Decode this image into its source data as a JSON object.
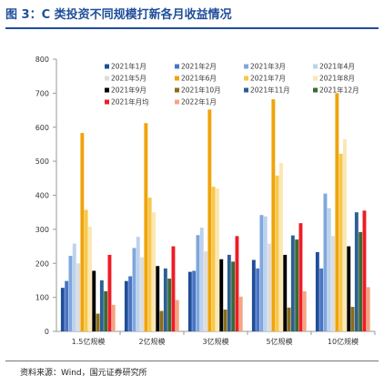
{
  "figure_title": "图 3：C 类投资不同规模打新各月收益情况",
  "source_note": "资料来源：Wind，国元证券研究所",
  "chart_data": {
    "type": "bar",
    "categories": [
      "1.5亿规模",
      "2亿规模",
      "3亿规模",
      "5亿规模",
      "10亿规模"
    ],
    "ylim": [
      0,
      800
    ],
    "yticks": [
      0,
      100,
      200,
      300,
      400,
      500,
      600,
      700,
      800
    ],
    "grid": false,
    "legend_position": "top",
    "series": [
      {
        "name": "2021年1月",
        "color": "#1f4e9a",
        "values": [
          128,
          148,
          175,
          210,
          233
        ]
      },
      {
        "name": "2021年2月",
        "color": "#4a74c4",
        "values": [
          148,
          162,
          178,
          185,
          185
        ]
      },
      {
        "name": "2021年3月",
        "color": "#7fa7dc",
        "values": [
          222,
          245,
          283,
          342,
          405
        ]
      },
      {
        "name": "2021年4月",
        "color": "#bcd2ee",
        "values": [
          258,
          278,
          305,
          338,
          362
        ]
      },
      {
        "name": "2021年5月",
        "color": "#dcdcdc",
        "values": [
          200,
          218,
          235,
          258,
          280
        ]
      },
      {
        "name": "2021年6月",
        "color": "#f0a30a",
        "values": [
          583,
          612,
          652,
          682,
          700
        ]
      },
      {
        "name": "2021年7月",
        "color": "#f7c84a",
        "values": [
          357,
          393,
          425,
          458,
          522
        ]
      },
      {
        "name": "2021年8月",
        "color": "#fbe7b2",
        "values": [
          308,
          350,
          420,
          495,
          565
        ]
      },
      {
        "name": "2021年9月",
        "color": "#000000",
        "values": [
          178,
          192,
          212,
          225,
          250
        ]
      },
      {
        "name": "2021年10月",
        "color": "#8a6d1a",
        "values": [
          52,
          60,
          64,
          70,
          72
        ]
      },
      {
        "name": "2021年11月",
        "color": "#2d5f93",
        "values": [
          150,
          185,
          225,
          282,
          350
        ]
      },
      {
        "name": "2021年12月",
        "color": "#3a6b35",
        "values": [
          118,
          155,
          205,
          270,
          292
        ]
      },
      {
        "name": "2021年月均",
        "color": "#ee1c25",
        "values": [
          225,
          250,
          280,
          318,
          355
        ]
      },
      {
        "name": "2022年1月",
        "color": "#f4a582",
        "values": [
          78,
          92,
          102,
          118,
          130
        ]
      }
    ]
  }
}
